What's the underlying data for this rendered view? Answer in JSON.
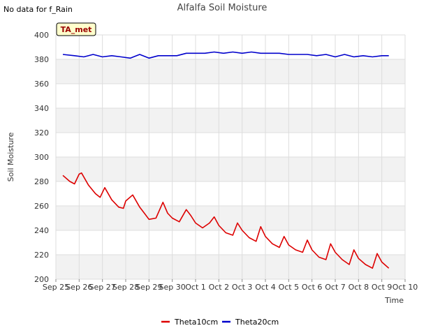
{
  "note": "No data for f_Rain",
  "badge": "TA_met",
  "colors": {
    "plot_bg": "#ffffff",
    "band": "#f2f2f2",
    "grid": "#dddddd",
    "theta10": "#dd0000",
    "theta20": "#0000cc",
    "badge_bg": "#ffffcc",
    "badge_text": "#990000"
  },
  "chart_data": {
    "type": "line",
    "title": "Alfalfa Soil Moisture",
    "xlabel": "Time",
    "ylabel": "Soil Moisture",
    "ylim": [
      200,
      400
    ],
    "yticks": [
      200,
      220,
      240,
      260,
      280,
      300,
      320,
      340,
      360,
      380,
      400
    ],
    "xlim": [
      0,
      15
    ],
    "xticks": [
      {
        "v": 0,
        "label": "Sep 25"
      },
      {
        "v": 1,
        "label": "Sep 26"
      },
      {
        "v": 2,
        "label": "Sep 27"
      },
      {
        "v": 3,
        "label": "Sep 28"
      },
      {
        "v": 4,
        "label": "Sep 29"
      },
      {
        "v": 5,
        "label": "Sep 30"
      },
      {
        "v": 6,
        "label": "Oct 1"
      },
      {
        "v": 7,
        "label": "Oct 2"
      },
      {
        "v": 8,
        "label": "Oct 3"
      },
      {
        "v": 9,
        "label": "Oct 4"
      },
      {
        "v": 10,
        "label": "Oct 5"
      },
      {
        "v": 11,
        "label": "Oct 6"
      },
      {
        "v": 12,
        "label": "Oct 7"
      },
      {
        "v": 13,
        "label": "Oct 8"
      },
      {
        "v": 14,
        "label": "Oct 9"
      },
      {
        "v": 15,
        "label": "Oct 10"
      }
    ],
    "grid": true,
    "legend": "bottom",
    "series": [
      {
        "name": "Theta10cm",
        "x": [
          0.3,
          0.6,
          0.8,
          1.0,
          1.1,
          1.4,
          1.7,
          1.9,
          2.1,
          2.4,
          2.7,
          2.9,
          3.0,
          3.3,
          3.6,
          3.8,
          4.0,
          4.3,
          4.6,
          4.8,
          5.0,
          5.3,
          5.6,
          5.8,
          6.0,
          6.3,
          6.6,
          6.8,
          7.0,
          7.3,
          7.6,
          7.8,
          8.0,
          8.3,
          8.6,
          8.8,
          9.0,
          9.3,
          9.6,
          9.8,
          10.0,
          10.3,
          10.6,
          10.8,
          11.0,
          11.3,
          11.6,
          11.8,
          12.0,
          12.3,
          12.6,
          12.8,
          13.0,
          13.3,
          13.6,
          13.8,
          14.0,
          14.3
        ],
        "values": [
          285,
          280,
          278,
          286,
          287,
          277,
          270,
          267,
          275,
          265,
          259,
          258,
          264,
          269,
          259,
          254,
          249,
          250,
          263,
          254,
          250,
          247,
          257,
          252,
          246,
          242,
          246,
          251,
          244,
          238,
          236,
          246,
          240,
          234,
          231,
          243,
          235,
          229,
          226,
          235,
          228,
          224,
          222,
          232,
          224,
          218,
          216,
          229,
          222,
          216,
          212,
          224,
          217,
          212,
          209,
          221,
          214,
          209
        ]
      },
      {
        "name": "Theta20cm",
        "x": [
          0.3,
          0.8,
          1.2,
          1.6,
          2.0,
          2.4,
          2.8,
          3.2,
          3.6,
          4.0,
          4.4,
          4.8,
          5.2,
          5.6,
          6.0,
          6.4,
          6.8,
          7.2,
          7.6,
          8.0,
          8.4,
          8.8,
          9.2,
          9.6,
          10.0,
          10.4,
          10.8,
          11.2,
          11.6,
          12.0,
          12.4,
          12.8,
          13.2,
          13.6,
          14.0,
          14.3
        ],
        "values": [
          384,
          383,
          382,
          384,
          382,
          383,
          382,
          381,
          384,
          381,
          383,
          383,
          383,
          385,
          385,
          385,
          386,
          385,
          386,
          385,
          386,
          385,
          385,
          385,
          384,
          384,
          384,
          383,
          384,
          382,
          384,
          382,
          383,
          382,
          383,
          383
        ]
      }
    ]
  }
}
